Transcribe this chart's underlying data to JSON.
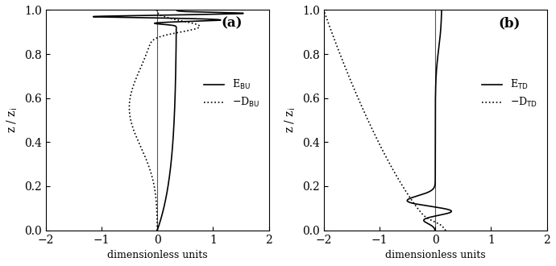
{
  "xlim": [
    -2,
    2
  ],
  "ylim": [
    0,
    1
  ],
  "xlabel": "dimensionless units",
  "ylabel_a": "z / z$_i$",
  "ylabel_b": "z / z$_i$",
  "label_a": "(a)",
  "label_b": "(b)",
  "legend_a_solid": "E$_{BU}$",
  "legend_a_dot": "-D$_{BU}$",
  "legend_b_solid": "E$_{TD}$",
  "legend_b_dot": "-D$_{TD}$",
  "line_color": "#000000",
  "bg_color": "#ffffff",
  "xticks": [
    -2,
    -1,
    0,
    1,
    2
  ],
  "yticks": [
    0.0,
    0.2,
    0.4,
    0.6,
    0.8,
    1.0
  ]
}
